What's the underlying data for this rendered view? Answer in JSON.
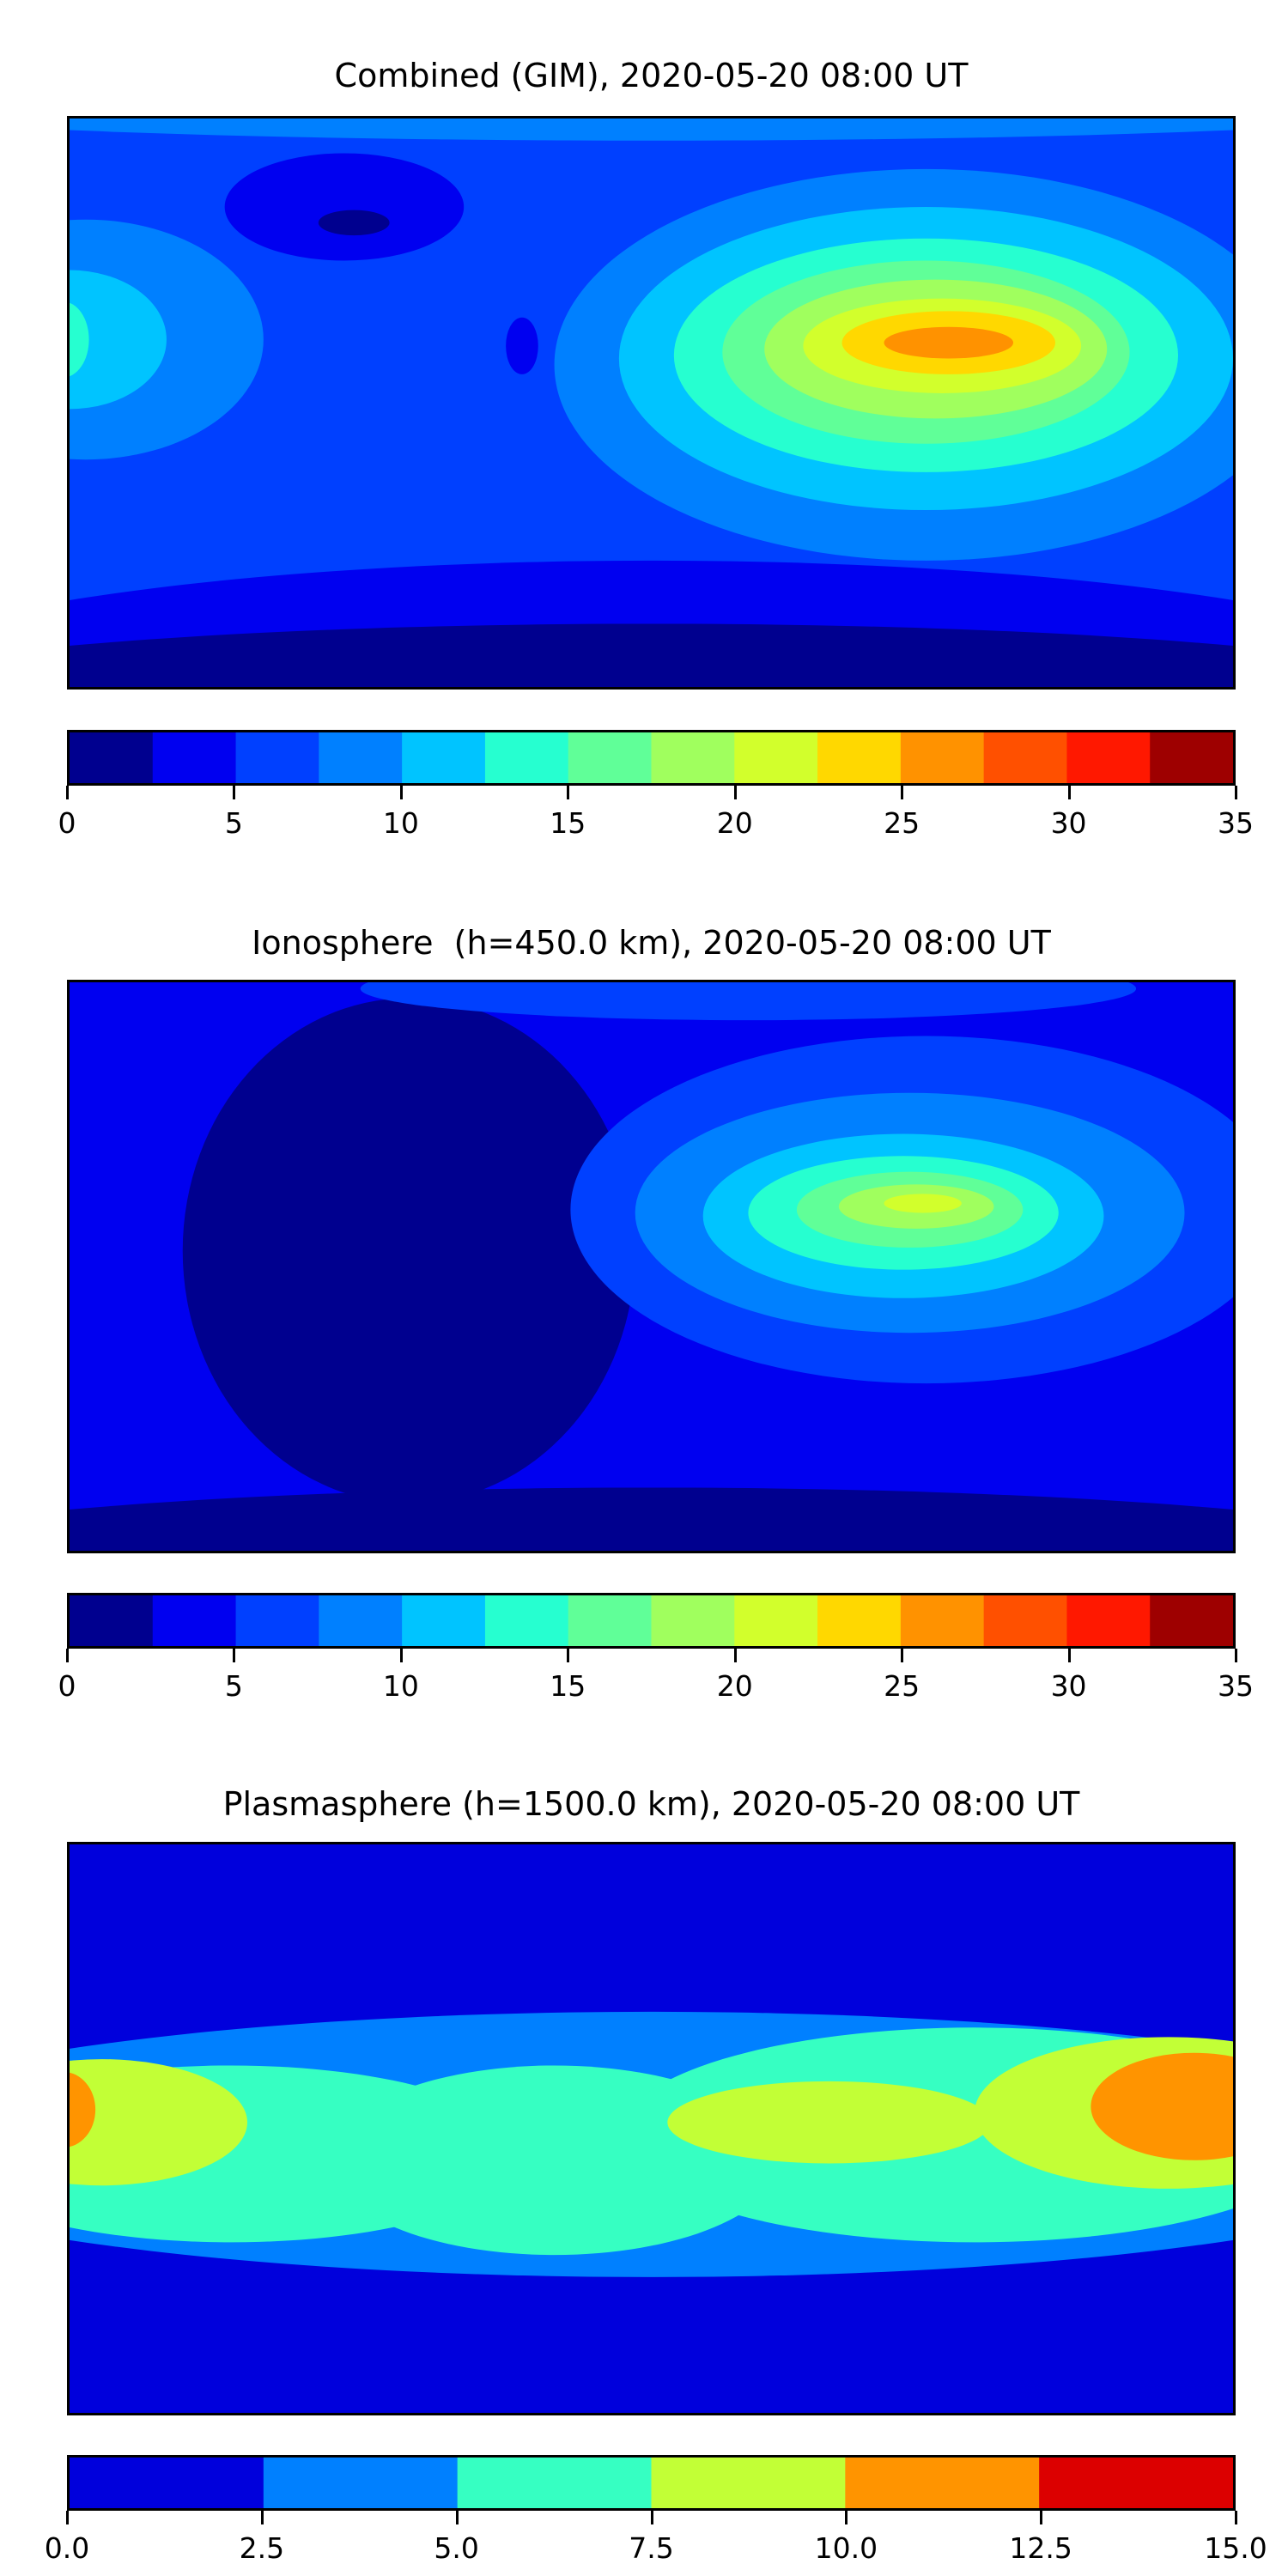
{
  "chart_data": [
    {
      "type": "heatmap",
      "title": "Combined (GIM), 2020-05-20 08:00 UT",
      "projection": "PlateCarree",
      "xlim": [
        -180,
        180
      ],
      "ylim": [
        -90,
        90
      ],
      "colormap": "jet",
      "levels": [
        0,
        2.5,
        5,
        7.5,
        10,
        12.5,
        15,
        17.5,
        20,
        22.5,
        25,
        27.5,
        30,
        32.5,
        35
      ],
      "level_colors": [
        "#00008f",
        "#0000f0",
        "#0040ff",
        "#0080ff",
        "#00c4ff",
        "#26ffd0",
        "#60ff98",
        "#a0ff5e",
        "#d2ff2c",
        "#ffd800",
        "#ff9200",
        "#ff5000",
        "#ff1800",
        "#9e0000"
      ],
      "colorbar_ticks": [
        "0",
        "5",
        "10",
        "15",
        "20",
        "25",
        "30",
        "35"
      ],
      "background_level": 2,
      "regions": [
        {
          "name": "north-cap",
          "lon": 0,
          "lat": 95,
          "rlon": 260,
          "rlat": 12,
          "level": 3
        },
        {
          "name": "south-band",
          "lon": 0,
          "lat": -95,
          "rlon": 260,
          "rlat": 45,
          "level": 1
        },
        {
          "name": "south-polar",
          "lon": 0,
          "lat": -95,
          "rlon": 260,
          "rlat": 25,
          "level": 0
        },
        {
          "name": "pacific-west",
          "lon": -175,
          "lat": 20,
          "rlon": 55,
          "rlat": 38,
          "level": 3
        },
        {
          "name": "pacific-core",
          "lon": -180,
          "lat": 20,
          "rlon": 30,
          "rlat": 22,
          "level": 4
        },
        {
          "name": "pacific-peak",
          "lon": -182,
          "lat": 20,
          "rlon": 8,
          "rlat": 12,
          "level": 5
        },
        {
          "name": "canada-low",
          "lon": -95,
          "lat": 62,
          "rlon": 37,
          "rlat": 17,
          "level": 1
        },
        {
          "name": "hudson-min",
          "lon": -92,
          "lat": 57,
          "rlon": 11,
          "rlat": 4,
          "level": 0
        },
        {
          "name": "atlantic-low",
          "lon": -40,
          "lat": 18,
          "rlon": 5,
          "rlat": 9,
          "level": 1
        },
        {
          "name": "east-l3",
          "lon": 85,
          "lat": 12,
          "rlon": 115,
          "rlat": 62,
          "level": 3
        },
        {
          "name": "east-l4",
          "lon": 85,
          "lat": 14,
          "rlon": 95,
          "rlat": 48,
          "level": 4
        },
        {
          "name": "east-l5",
          "lon": 85,
          "lat": 15,
          "rlon": 78,
          "rlat": 37,
          "level": 5
        },
        {
          "name": "east-l6",
          "lon": 85,
          "lat": 16,
          "rlon": 63,
          "rlat": 29,
          "level": 6
        },
        {
          "name": "east-l7",
          "lon": 88,
          "lat": 17,
          "rlon": 53,
          "rlat": 22,
          "level": 7
        },
        {
          "name": "east-l8",
          "lon": 90,
          "lat": 18,
          "rlon": 43,
          "rlat": 15,
          "level": 8
        },
        {
          "name": "east-l9",
          "lon": 92,
          "lat": 19,
          "rlon": 33,
          "rlat": 10,
          "level": 9
        },
        {
          "name": "east-peak",
          "lon": 92,
          "lat": 19,
          "rlon": 20,
          "rlat": 5,
          "level": 10
        }
      ]
    },
    {
      "type": "heatmap",
      "title": "Ionosphere  (h=450.0 km), 2020-05-20 08:00 UT",
      "projection": "PlateCarree",
      "xlim": [
        -180,
        180
      ],
      "ylim": [
        -90,
        90
      ],
      "colormap": "jet",
      "levels": [
        0,
        2.5,
        5,
        7.5,
        10,
        12.5,
        15,
        17.5,
        20,
        22.5,
        25,
        27.5,
        30,
        32.5,
        35
      ],
      "level_colors": [
        "#00008f",
        "#0000f0",
        "#0040ff",
        "#0080ff",
        "#00c4ff",
        "#26ffd0",
        "#60ff98",
        "#a0ff5e",
        "#d2ff2c",
        "#ffd800",
        "#ff9200",
        "#ff5000",
        "#ff1800",
        "#9e0000"
      ],
      "colorbar_ticks": [
        "0",
        "5",
        "10",
        "15",
        "20",
        "25",
        "30",
        "35"
      ],
      "background_level": 1,
      "regions": [
        {
          "name": "americas-min",
          "lon": -75,
          "lat": 5,
          "rlon": 70,
          "rlat": 80,
          "level": 0
        },
        {
          "name": "south-polar",
          "lon": 0,
          "lat": -95,
          "rlon": 260,
          "rlat": 25,
          "level": 0
        },
        {
          "name": "north-arctic",
          "lon": 30,
          "lat": 88,
          "rlon": 120,
          "rlat": 10,
          "level": 2
        },
        {
          "name": "east-l2",
          "lon": 85,
          "lat": 18,
          "rlon": 110,
          "rlat": 55,
          "level": 2
        },
        {
          "name": "east-l3",
          "lon": 80,
          "lat": 17,
          "rlon": 85,
          "rlat": 38,
          "level": 3
        },
        {
          "name": "east-l4",
          "lon": 78,
          "lat": 16,
          "rlon": 62,
          "rlat": 26,
          "level": 4
        },
        {
          "name": "east-l5",
          "lon": 78,
          "lat": 17,
          "rlon": 48,
          "rlat": 18,
          "level": 5
        },
        {
          "name": "east-l6",
          "lon": 80,
          "lat": 18,
          "rlon": 35,
          "rlat": 12,
          "level": 6
        },
        {
          "name": "east-l7",
          "lon": 82,
          "lat": 19,
          "rlon": 24,
          "rlat": 7,
          "level": 7
        },
        {
          "name": "east-peak",
          "lon": 84,
          "lat": 20,
          "rlon": 12,
          "rlat": 3,
          "level": 8
        }
      ]
    },
    {
      "type": "heatmap",
      "title": "Plasmasphere (h=1500.0 km), 2020-05-20 08:00 UT",
      "projection": "PlateCarree",
      "xlim": [
        -180,
        180
      ],
      "ylim": [
        -90,
        90
      ],
      "colormap": "jet",
      "levels": [
        0,
        2.5,
        5,
        7.5,
        10,
        12.5,
        15
      ],
      "level_colors": [
        "#0000dc",
        "#0080ff",
        "#36ffc2",
        "#c2ff36",
        "#ff9400",
        "#dc0000"
      ],
      "colorbar_ticks": [
        "0.0",
        "2.5",
        "5.0",
        "7.5",
        "10.0",
        "12.5",
        "15.0"
      ],
      "background_level": 0,
      "regions": [
        {
          "name": "band-l1",
          "lon": 0,
          "lat": -5,
          "rlon": 260,
          "rlat": 42,
          "level": 1
        },
        {
          "name": "band-l2-west",
          "lon": -130,
          "lat": -8,
          "rlon": 90,
          "rlat": 28,
          "level": 2
        },
        {
          "name": "band-l2-central",
          "lon": -30,
          "lat": -10,
          "rlon": 70,
          "rlat": 30,
          "level": 2
        },
        {
          "name": "band-l2-east",
          "lon": 100,
          "lat": -2,
          "rlon": 110,
          "rlat": 34,
          "level": 2
        },
        {
          "name": "pacific-l3",
          "lon": -170,
          "lat": 2,
          "rlon": 45,
          "rlat": 20,
          "level": 3
        },
        {
          "name": "africa-l3",
          "lon": 55,
          "lat": 2,
          "rlon": 50,
          "rlat": 13,
          "level": 3
        },
        {
          "name": "westpac-l3",
          "lon": 160,
          "lat": 5,
          "rlon": 60,
          "rlat": 24,
          "level": 3
        },
        {
          "name": "westpac-l4",
          "lon": 168,
          "lat": 7,
          "rlon": 32,
          "rlat": 17,
          "level": 4
        },
        {
          "name": "edge-l4",
          "lon": -182,
          "lat": 6,
          "rlon": 10,
          "rlat": 12,
          "level": 4
        }
      ]
    }
  ]
}
